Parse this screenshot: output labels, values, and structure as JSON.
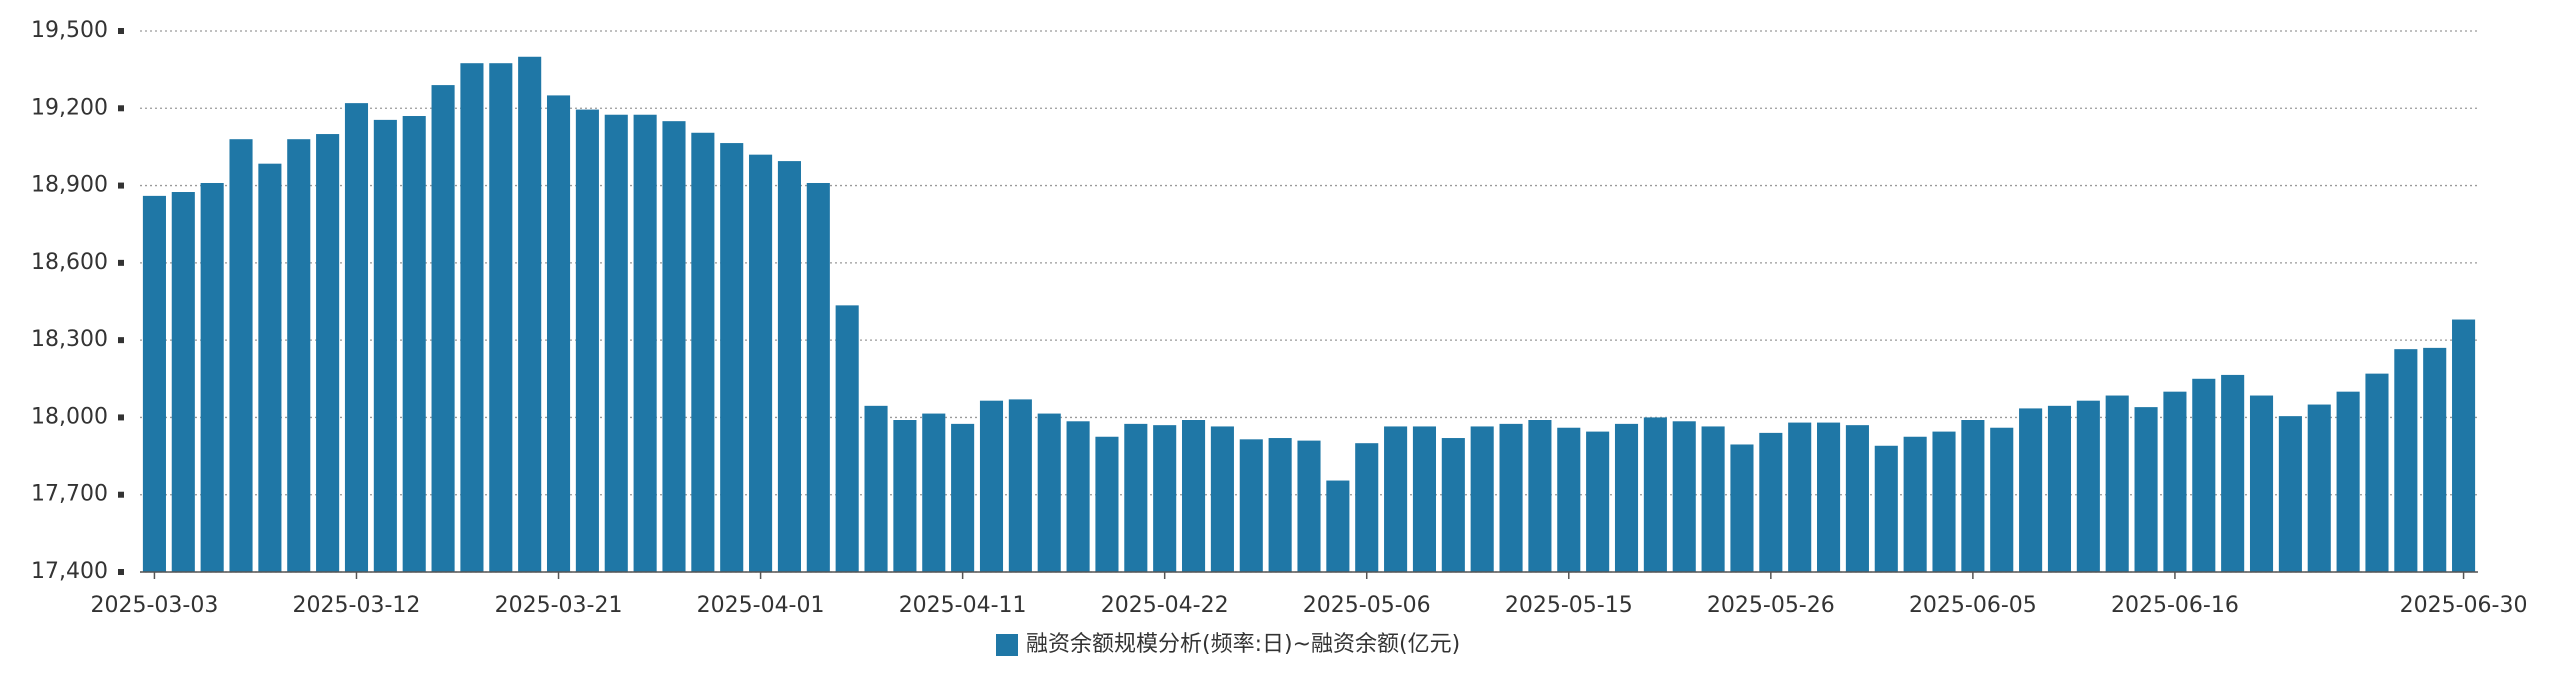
{
  "chart_data": {
    "type": "bar",
    "categories": [
      "2025-03-03",
      null,
      null,
      null,
      null,
      null,
      null,
      "2025-03-12",
      null,
      null,
      null,
      null,
      null,
      null,
      "2025-03-21",
      null,
      null,
      null,
      null,
      null,
      null,
      "2025-04-01",
      null,
      null,
      null,
      null,
      null,
      null,
      "2025-04-11",
      null,
      null,
      null,
      null,
      null,
      null,
      "2025-04-22",
      null,
      null,
      null,
      null,
      null,
      null,
      "2025-05-06",
      null,
      null,
      null,
      null,
      null,
      null,
      "2025-05-15",
      null,
      null,
      null,
      null,
      null,
      null,
      "2025-05-26",
      null,
      null,
      null,
      null,
      null,
      null,
      "2025-06-05",
      null,
      null,
      null,
      null,
      null,
      null,
      "2025-06-16",
      null,
      null,
      null,
      null,
      null,
      null,
      null,
      null,
      null,
      "2025-06-30"
    ],
    "series": [
      {
        "name": "融资余额规模分析(频率:日)~融资余额(亿元)",
        "color": "#1f77a6",
        "values": [
          18860,
          18875,
          18910,
          19080,
          18985,
          19080,
          19100,
          19220,
          19155,
          19170,
          19290,
          19375,
          19375,
          19400,
          19250,
          19195,
          19175,
          19175,
          19150,
          19105,
          19065,
          19020,
          18995,
          18910,
          18435,
          18045,
          17990,
          18015,
          17975,
          18065,
          18070,
          18015,
          17985,
          17925,
          17975,
          17970,
          17990,
          17965,
          17915,
          17920,
          17910,
          17755,
          17900,
          17965,
          17965,
          17920,
          17965,
          17975,
          17990,
          17960,
          17945,
          17975,
          18000,
          17985,
          17965,
          17895,
          17940,
          17980,
          17980,
          17970,
          17890,
          17925,
          17945,
          17990,
          17960,
          18035,
          18045,
          18065,
          18085,
          18040,
          18100,
          18150,
          18165,
          18085,
          18005,
          18050,
          18100,
          18170,
          18265,
          18270,
          18380
        ]
      }
    ],
    "ylim": [
      17400,
      19500
    ],
    "yticks": [
      {
        "value": 17400,
        "label": "17,400"
      },
      {
        "value": 17700,
        "label": "17,700"
      },
      {
        "value": 18000,
        "label": "18,000"
      },
      {
        "value": 18300,
        "label": "18,300"
      },
      {
        "value": 18600,
        "label": "18,600"
      },
      {
        "value": 18900,
        "label": "18,900"
      },
      {
        "value": 19200,
        "label": "19,200"
      },
      {
        "value": 19500,
        "label": "19,500"
      }
    ],
    "grid": true
  }
}
